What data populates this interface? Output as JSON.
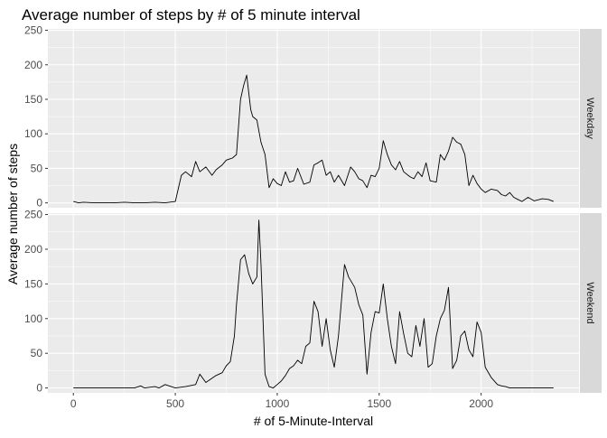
{
  "chart_data": {
    "type": "line",
    "title": "Average number of steps by # of 5 minute interval",
    "xlabel": "# of 5-Minute-Interval",
    "ylabel": "Average number of steps",
    "xlim": [
      -125,
      2480
    ],
    "ylim": [
      -7,
      252
    ],
    "x_ticks": [
      0,
      500,
      1000,
      1500,
      2000
    ],
    "y_ticks": [
      0,
      50,
      100,
      150,
      200,
      250
    ],
    "grid": true,
    "colors": {
      "panel_bg": "#ebebeb",
      "grid_major": "#ffffff",
      "strip_bg": "#d9d9d9",
      "line": "#000000",
      "tick_text": "#4d4d4d",
      "text": "#000000"
    },
    "panels": [
      {
        "strip_label": "Weekday",
        "x": [
          0,
          25,
          50,
          100,
          150,
          200,
          250,
          300,
          350,
          400,
          450,
          500,
          530,
          550,
          580,
          600,
          620,
          650,
          680,
          700,
          730,
          750,
          780,
          800,
          820,
          835,
          850,
          870,
          880,
          900,
          920,
          940,
          960,
          980,
          1000,
          1020,
          1040,
          1060,
          1080,
          1100,
          1130,
          1160,
          1180,
          1200,
          1220,
          1240,
          1260,
          1280,
          1300,
          1330,
          1360,
          1380,
          1400,
          1420,
          1440,
          1460,
          1480,
          1500,
          1520,
          1540,
          1560,
          1580,
          1600,
          1620,
          1650,
          1670,
          1690,
          1710,
          1730,
          1750,
          1780,
          1800,
          1820,
          1840,
          1860,
          1880,
          1900,
          1920,
          1940,
          1960,
          1980,
          2000,
          2020,
          2050,
          2080,
          2100,
          2120,
          2140,
          2160,
          2180,
          2200,
          2230,
          2260,
          2300,
          2330,
          2355
        ],
        "y": [
          2,
          0,
          1,
          0,
          0,
          0,
          1,
          0,
          0,
          1,
          0,
          2,
          40,
          45,
          38,
          60,
          45,
          52,
          40,
          48,
          55,
          62,
          65,
          70,
          150,
          170,
          185,
          135,
          125,
          120,
          88,
          70,
          22,
          35,
          28,
          25,
          45,
          30,
          32,
          50,
          27,
          30,
          55,
          58,
          62,
          40,
          45,
          30,
          40,
          25,
          52,
          45,
          35,
          32,
          22,
          40,
          38,
          50,
          90,
          70,
          55,
          48,
          60,
          45,
          38,
          35,
          45,
          38,
          58,
          32,
          30,
          70,
          62,
          75,
          95,
          88,
          85,
          70,
          25,
          40,
          28,
          20,
          15,
          20,
          18,
          12,
          10,
          15,
          8,
          5,
          2,
          8,
          3,
          6,
          5,
          2
        ],
        "note": "peak near interval 835 (~185 steps)"
      },
      {
        "strip_label": "Weekend",
        "x": [
          0,
          50,
          100,
          150,
          200,
          250,
          300,
          330,
          350,
          400,
          420,
          450,
          500,
          550,
          600,
          620,
          650,
          700,
          730,
          750,
          770,
          790,
          800,
          820,
          840,
          860,
          880,
          900,
          910,
          920,
          940,
          960,
          980,
          1000,
          1020,
          1040,
          1060,
          1080,
          1100,
          1120,
          1140,
          1160,
          1180,
          1200,
          1220,
          1240,
          1260,
          1280,
          1300,
          1330,
          1350,
          1380,
          1400,
          1420,
          1440,
          1460,
          1480,
          1500,
          1520,
          1540,
          1560,
          1580,
          1600,
          1620,
          1640,
          1660,
          1680,
          1700,
          1720,
          1740,
          1760,
          1780,
          1800,
          1820,
          1840,
          1860,
          1880,
          1900,
          1920,
          1940,
          1960,
          1980,
          2000,
          2020,
          2050,
          2080,
          2100,
          2120,
          2140,
          2160,
          2200,
          2250,
          2300,
          2355
        ],
        "y": [
          0,
          0,
          0,
          0,
          0,
          0,
          0,
          3,
          0,
          2,
          0,
          5,
          0,
          2,
          5,
          20,
          8,
          18,
          22,
          32,
          38,
          75,
          120,
          185,
          192,
          165,
          150,
          160,
          242,
          180,
          20,
          2,
          0,
          5,
          10,
          18,
          28,
          32,
          40,
          35,
          60,
          65,
          125,
          110,
          60,
          100,
          55,
          30,
          75,
          178,
          160,
          145,
          120,
          105,
          20,
          80,
          110,
          108,
          150,
          100,
          60,
          35,
          110,
          78,
          50,
          45,
          90,
          60,
          100,
          30,
          35,
          75,
          100,
          112,
          145,
          28,
          40,
          75,
          82,
          55,
          45,
          95,
          80,
          30,
          15,
          5,
          3,
          2,
          0,
          0,
          0,
          0,
          0,
          0
        ],
        "note": "peak near interval 910 (~242 steps)"
      }
    ]
  }
}
